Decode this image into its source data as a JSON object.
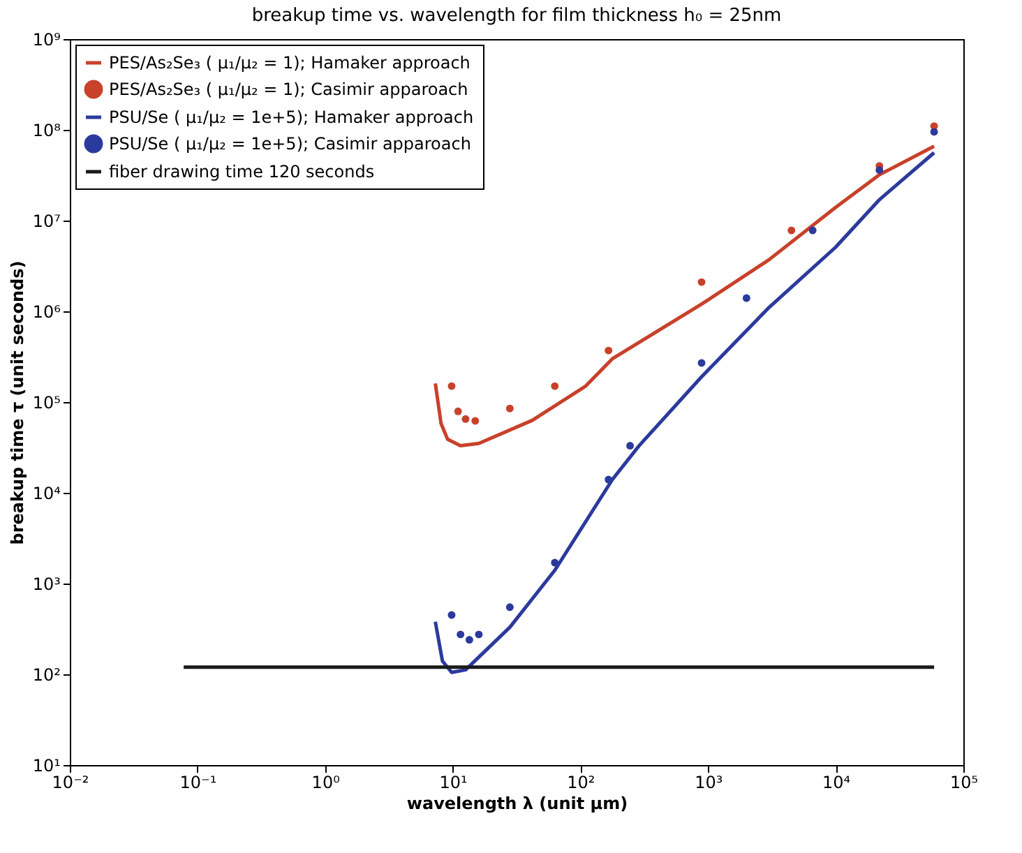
{
  "chart_data": {
    "type": "line",
    "title": "breakup time vs. wavelength for film thickness h₀ = 25nm",
    "xlabel": "wavelength λ (unit μm)",
    "ylabel": "breakup time τ (unit seconds)",
    "log": "xy",
    "xlim": [
      0.01,
      100000
    ],
    "ylim": [
      10,
      1000000000
    ],
    "xticks": [
      {
        "value": 0.01,
        "label": "10⁻²"
      },
      {
        "value": 0.1,
        "label": "10⁻¹"
      },
      {
        "value": 1,
        "label": "10⁰"
      },
      {
        "value": 10,
        "label": "10¹"
      },
      {
        "value": 100,
        "label": "10²"
      },
      {
        "value": 1000,
        "label": "10³"
      },
      {
        "value": 10000,
        "label": "10⁴"
      },
      {
        "value": 100000,
        "label": "10⁵"
      }
    ],
    "yticks": [
      {
        "value": 10,
        "label": "10¹"
      },
      {
        "value": 100,
        "label": "10²"
      },
      {
        "value": 1000,
        "label": "10³"
      },
      {
        "value": 10000,
        "label": "10⁴"
      },
      {
        "value": 100000,
        "label": "10⁵"
      },
      {
        "value": 1000000,
        "label": "10⁶"
      },
      {
        "value": 10000000,
        "label": "10⁷"
      },
      {
        "value": 100000000,
        "label": "10⁸"
      },
      {
        "value": 1000000000,
        "label": "10⁹"
      }
    ],
    "grid": false,
    "legend": "top left",
    "series": [
      {
        "name": "PES/As₂Se₃ ( μ₁/μ₂ = 1); Hamaker approach",
        "color": "#c8412a",
        "x": [
          7.3,
          8.1,
          9.1,
          11.5,
          16,
          42,
          110,
          178,
          890,
          3000,
          10000,
          22000,
          59000
        ],
        "values": [
          160000,
          58000,
          39000,
          33000,
          35000,
          63000,
          150000,
          300000,
          1200000,
          3700000,
          14000000,
          32000000,
          66000000
        ]
      },
      {
        "name": "PES/As₂Se₃ ( μ₁/μ₂ = 1); Casimir apparoach",
        "type": "scatter",
        "marker": "circle",
        "color": "#c8412a",
        "x": [
          9.8,
          11,
          12.6,
          15,
          28,
          63,
          166,
          890,
          4500,
          22000,
          59000
        ],
        "values": [
          150000,
          79000,
          65000,
          62000,
          85000,
          150000,
          370000,
          2100000,
          7800000,
          40000000,
          110000000
        ]
      },
      {
        "name": "PSU/Se ( μ₁/μ₂ = 1e+5); Hamaker approach",
        "color": "#2b3a9c",
        "x": [
          7.3,
          8.3,
          9.8,
          12.6,
          28,
          63,
          178,
          288,
          890,
          3000,
          10000,
          22000,
          59000
        ],
        "values": [
          380,
          140,
          105,
          112,
          330,
          1400,
          14000,
          33000,
          190000,
          1100000,
          5100000,
          17000000,
          56000000
        ]
      },
      {
        "name": "PSU/Se ( μ₁/μ₂ = 1e+5); Casimir apparoach",
        "type": "scatter",
        "marker": "circle",
        "color": "#2b3a9c",
        "x": [
          9.8,
          11.5,
          13.5,
          16,
          28,
          63,
          166,
          245,
          890,
          2000,
          6600,
          22000,
          59000
        ],
        "values": [
          450,
          275,
          240,
          275,
          550,
          1700,
          14000,
          33000,
          270000,
          1400000,
          7800000,
          36000000,
          95000000
        ]
      },
      {
        "name": "fiber drawing time 120 seconds",
        "color": "#1a1a1a",
        "x": [
          0.078,
          59000
        ],
        "values": [
          120,
          120
        ]
      }
    ]
  }
}
